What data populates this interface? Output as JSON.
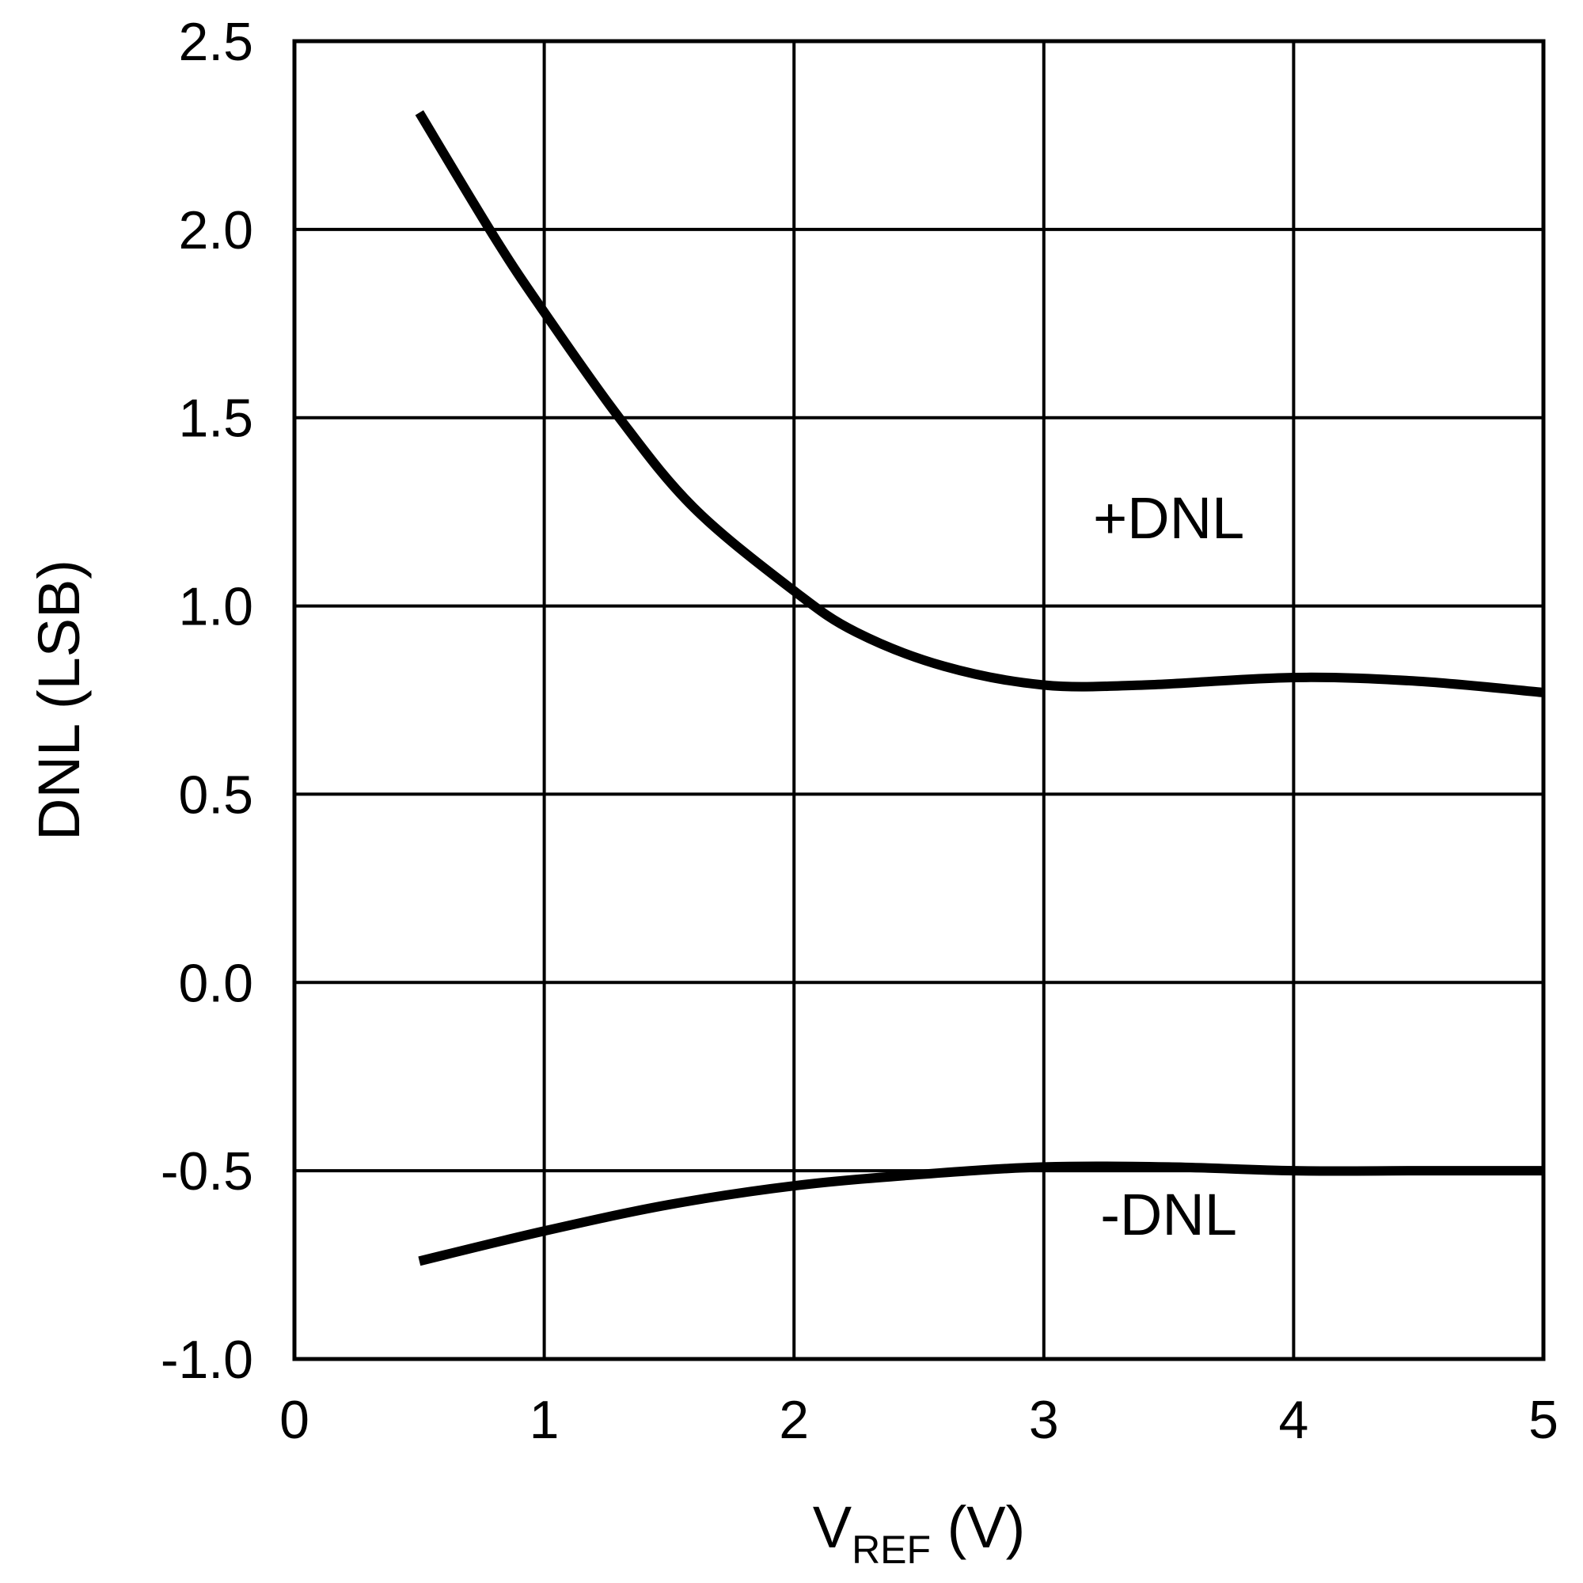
{
  "chart_data": {
    "type": "line",
    "title": "",
    "xlabel": {
      "main": "V",
      "sub": "REF",
      "suffix": " (V)"
    },
    "ylabel": "DNL (LSB)",
    "xlim": [
      0,
      5
    ],
    "ylim": [
      -1.0,
      2.5
    ],
    "x_ticks": [
      0,
      1,
      2,
      3,
      4,
      5
    ],
    "x_tick_labels": [
      "0",
      "1",
      "2",
      "3",
      "4",
      "5"
    ],
    "y_ticks": [
      -1.0,
      -0.5,
      0.0,
      0.5,
      1.0,
      1.5,
      2.0,
      2.5
    ],
    "y_tick_labels": [
      "-1.0",
      "-0.5",
      "0.0",
      "0.5",
      "1.0",
      "1.5",
      "2.0",
      "2.5"
    ],
    "grid": true,
    "line_color": "#000000",
    "series": [
      {
        "name": "+DNL",
        "x": [
          0.5,
          0.8,
          1.0,
          1.3,
          1.6,
          2.0,
          2.25,
          2.6,
          3.0,
          3.4,
          4.0,
          4.5,
          5.0
        ],
        "y": [
          2.31,
          1.98,
          1.78,
          1.5,
          1.26,
          1.04,
          0.93,
          0.84,
          0.79,
          0.79,
          0.81,
          0.8,
          0.77
        ]
      },
      {
        "name": "-DNL",
        "x": [
          0.5,
          1.0,
          1.5,
          2.0,
          2.5,
          3.0,
          3.5,
          4.0,
          4.5,
          5.0
        ],
        "y": [
          -0.74,
          -0.66,
          -0.59,
          -0.54,
          -0.51,
          -0.49,
          -0.49,
          -0.5,
          -0.5,
          -0.5
        ]
      }
    ],
    "series_label_anchor": [
      {
        "text": "+DNL",
        "x": 3.5,
        "y": 1.18
      },
      {
        "text": "-DNL",
        "x": 3.5,
        "y": -0.67
      }
    ]
  }
}
